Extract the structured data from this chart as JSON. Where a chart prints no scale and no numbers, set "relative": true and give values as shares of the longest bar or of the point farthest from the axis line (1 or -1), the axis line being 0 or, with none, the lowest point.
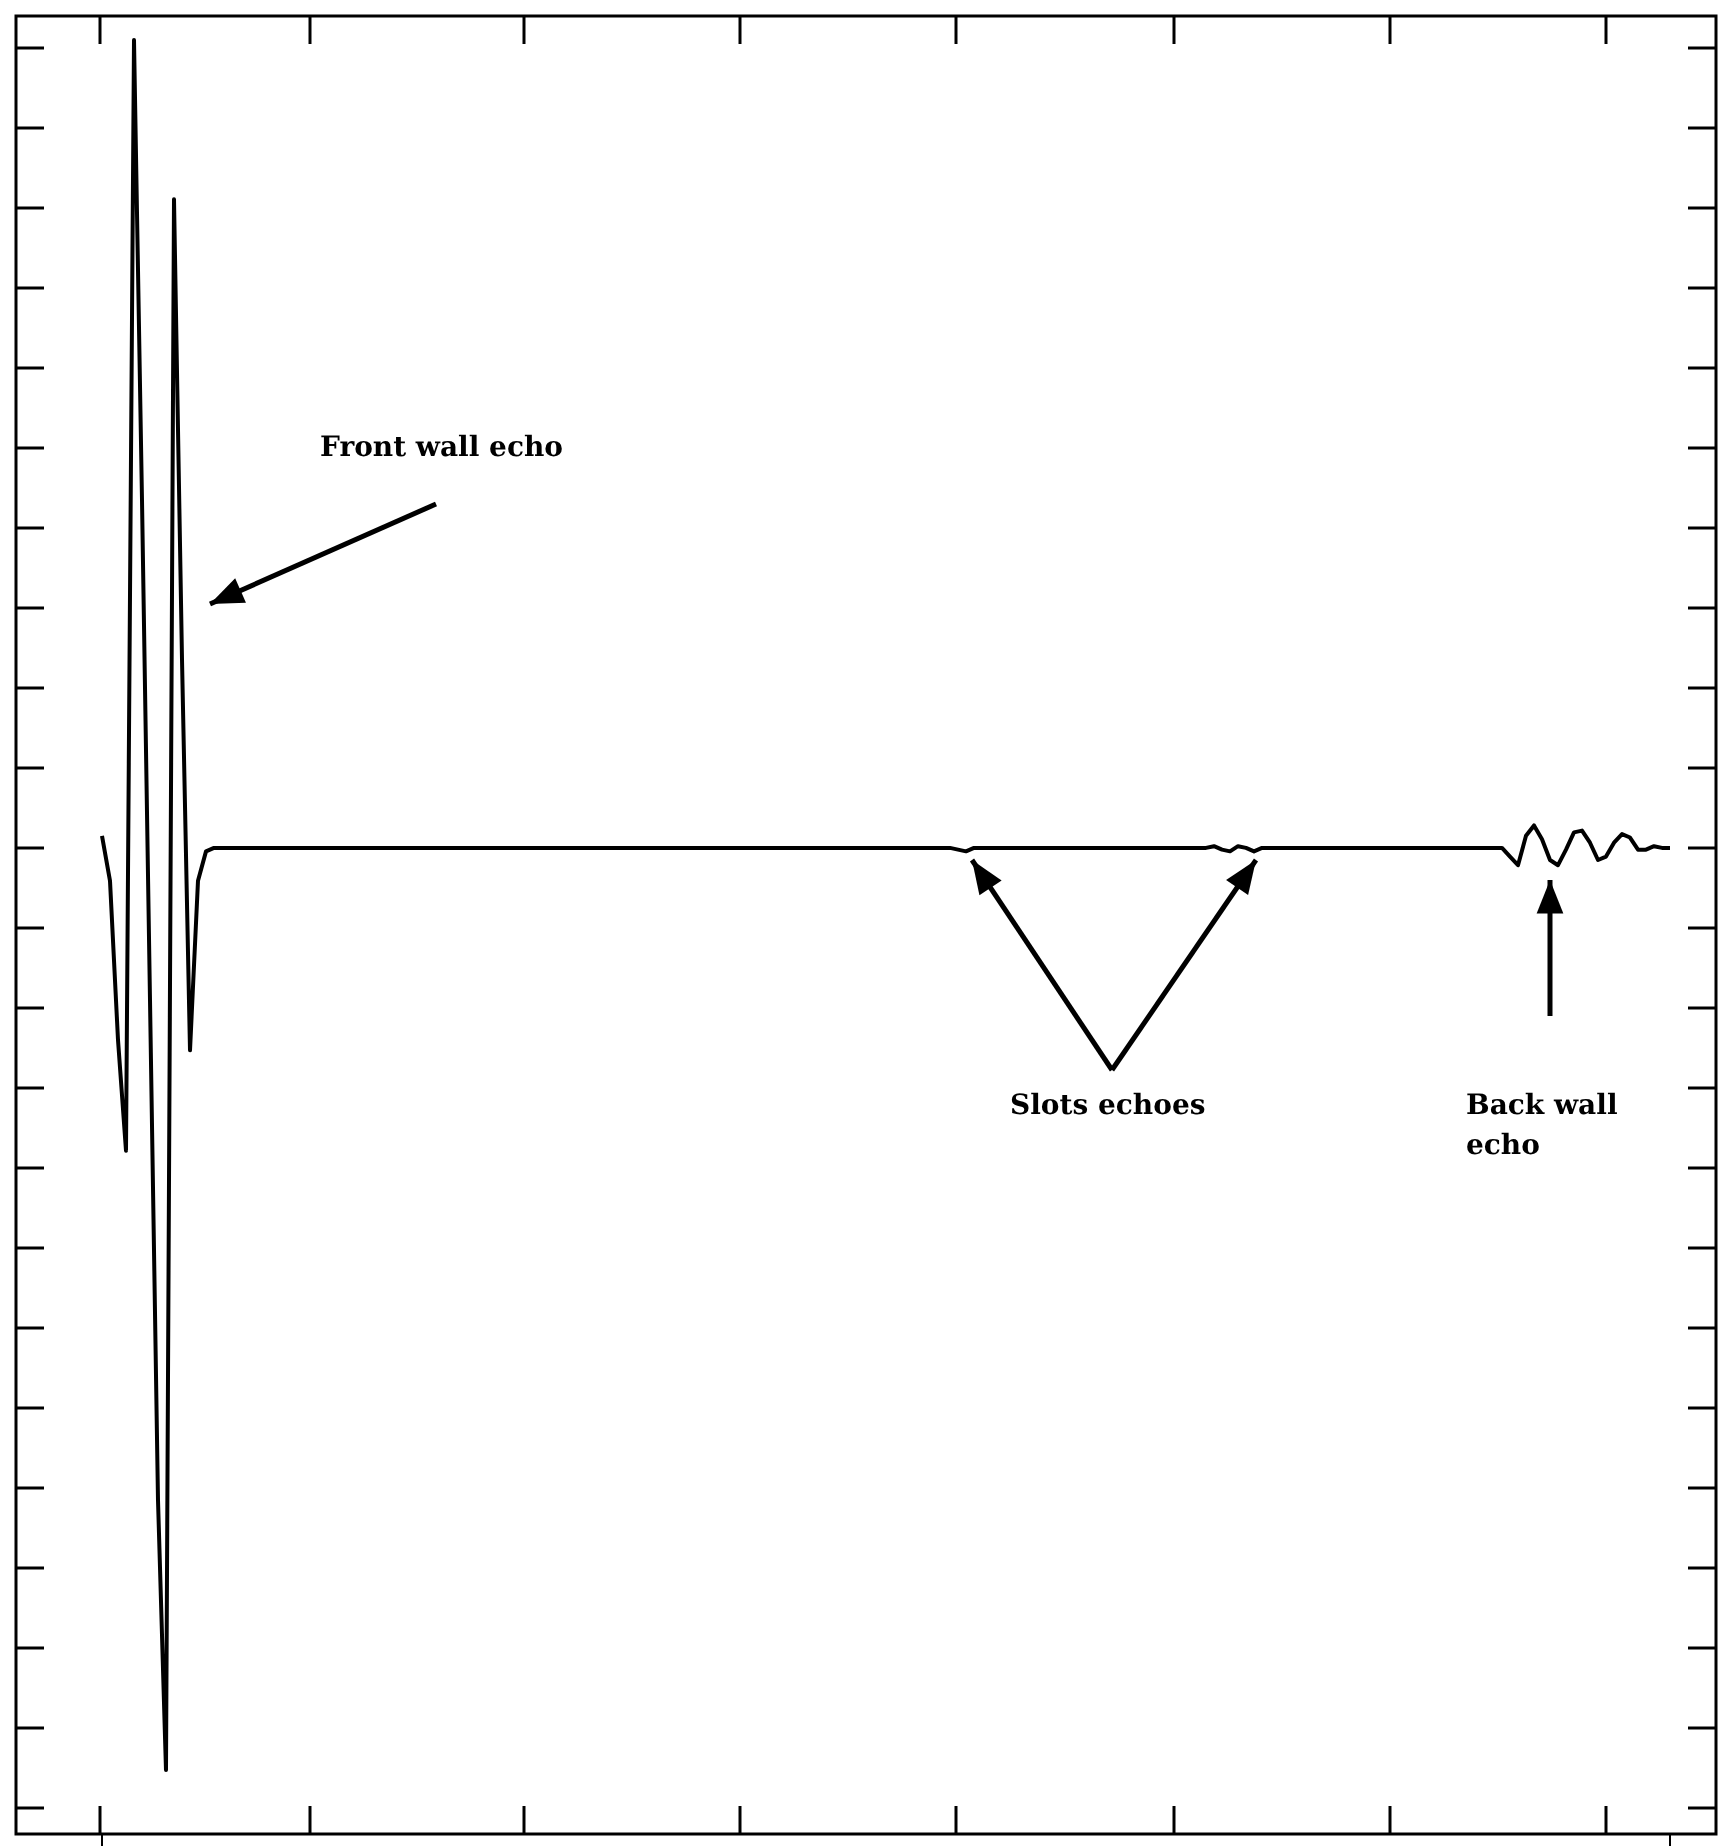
{
  "chart_data": {
    "type": "line",
    "relative": true,
    "color": "#000000",
    "categories": [
      null,
      null,
      null,
      null,
      null,
      null,
      null,
      null,
      null,
      null,
      null,
      null,
      null,
      null,
      null,
      null,
      null,
      null,
      null,
      null,
      null,
      null,
      null,
      null,
      null,
      null,
      null,
      null,
      null,
      null,
      null,
      null,
      null,
      null,
      null,
      null,
      null,
      null,
      null,
      null,
      null,
      null,
      null,
      null,
      null,
      null,
      null,
      null,
      null,
      null,
      null,
      null,
      null,
      null,
      null,
      null,
      null,
      null,
      null,
      null,
      null,
      null,
      null,
      null,
      null,
      null,
      null,
      null,
      null,
      null,
      null,
      null,
      null,
      null,
      null,
      null,
      null,
      null,
      null,
      null,
      null,
      null,
      null,
      null,
      null,
      null,
      null,
      null,
      null,
      null,
      null,
      null,
      null,
      null,
      null,
      null,
      null,
      null,
      null,
      null,
      null,
      null,
      null,
      null,
      null,
      null,
      null,
      null,
      null,
      null,
      null,
      null,
      null,
      null,
      null,
      null,
      null,
      null,
      null,
      null,
      null,
      null,
      null,
      null,
      null,
      null,
      null,
      null,
      null,
      null,
      null,
      null,
      null,
      null,
      null,
      null,
      null,
      null,
      null,
      null,
      null,
      null,
      null,
      null,
      null,
      null,
      null,
      null,
      null,
      null,
      null,
      null,
      null,
      null,
      null,
      null,
      null,
      null,
      null,
      null,
      null,
      null,
      null,
      null,
      null,
      null,
      null,
      null,
      null,
      null,
      null,
      null,
      null,
      null,
      null,
      null,
      null,
      null,
      null,
      null,
      null,
      null,
      null,
      null,
      null,
      null,
      null,
      null,
      null,
      null,
      null,
      null,
      null,
      null,
      null,
      null,
      null
    ],
    "values": [
      0.54,
      0.514,
      0.422,
      0.358,
      1,
      0.734,
      0.445,
      0.156,
      0,
      0.908,
      0.642,
      0.416,
      0.514,
      0.531,
      0.533,
      0.533,
      0.533,
      0.533,
      0.533,
      0.533,
      0.533,
      0.533,
      0.533,
      0.533,
      0.533,
      0.533,
      0.533,
      0.533,
      0.533,
      0.533,
      0.533,
      0.533,
      0.533,
      0.533,
      0.533,
      0.533,
      0.533,
      0.533,
      0.533,
      0.533,
      0.533,
      0.533,
      0.533,
      0.533,
      0.533,
      0.533,
      0.533,
      0.533,
      0.533,
      0.533,
      0.533,
      0.533,
      0.533,
      0.533,
      0.533,
      0.533,
      0.533,
      0.533,
      0.533,
      0.533,
      0.533,
      0.533,
      0.533,
      0.533,
      0.533,
      0.533,
      0.533,
      0.533,
      0.533,
      0.533,
      0.533,
      0.533,
      0.533,
      0.533,
      0.533,
      0.533,
      0.533,
      0.533,
      0.533,
      0.533,
      0.533,
      0.533,
      0.533,
      0.533,
      0.533,
      0.533,
      0.533,
      0.533,
      0.533,
      0.533,
      0.533,
      0.533,
      0.533,
      0.533,
      0.533,
      0.533,
      0.533,
      0.533,
      0.533,
      0.533,
      0.533,
      0.533,
      0.533,
      0.533,
      0.533,
      0.533,
      0.533,
      0.532,
      0.531,
      0.533,
      0.533,
      0.533,
      0.533,
      0.533,
      0.533,
      0.533,
      0.533,
      0.533,
      0.533,
      0.533,
      0.533,
      0.533,
      0.533,
      0.533,
      0.533,
      0.533,
      0.533,
      0.533,
      0.533,
      0.533,
      0.533,
      0.533,
      0.533,
      0.533,
      0.533,
      0.533,
      0.533,
      0.533,
      0.533,
      0.534,
      0.532,
      0.531,
      0.534,
      0.533,
      0.531,
      0.533,
      0.533,
      0.533,
      0.533,
      0.533,
      0.533,
      0.533,
      0.533,
      0.533,
      0.533,
      0.533,
      0.533,
      0.533,
      0.533,
      0.533,
      0.533,
      0.533,
      0.533,
      0.533,
      0.533,
      0.533,
      0.533,
      0.533,
      0.533,
      0.533,
      0.533,
      0.533,
      0.533,
      0.533,
      0.533,
      0.533,
      0.528,
      0.523,
      0.54,
      0.546,
      0.538,
      0.526,
      0.523,
      0.532,
      0.542,
      0.543,
      0.536,
      0.526,
      0.528,
      0.536,
      0.541,
      0.539,
      0.532,
      0.532,
      0.534,
      0.533,
      0.533
    ],
    "annotations": [
      "Front wall echo",
      "Slots echoes",
      "Back wall echo"
    ]
  }
}
